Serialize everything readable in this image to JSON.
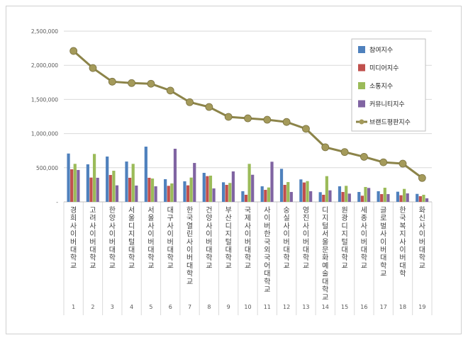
{
  "chart_data": {
    "type": "bar+line",
    "categories": [
      "경희사이버대학교",
      "고려사이버대학교",
      "한양사이버대학교",
      "서울디지털대학교",
      "서울사이버대학교",
      "대구사이버대학교",
      "한국열린사이버대학교",
      "건양사이버대학교",
      "부산디지털대학교",
      "국제사이버대학교",
      "사이버한국외국어대학교",
      "숭실사이버대학교",
      "영진사이버대학교",
      "디지털서울문화예술대학교",
      "원광디지털대학교",
      "세종사이버대학교",
      "글로벌사이버대학교",
      "한국복지사이버대학",
      "화신사이버대학교"
    ],
    "index_labels": [
      "1",
      "2",
      "3",
      "4",
      "5",
      "6",
      "7",
      "8",
      "9",
      "10",
      "11",
      "12",
      "13",
      "14",
      "15",
      "16",
      "17",
      "18",
      "19"
    ],
    "series": [
      {
        "name": "참여지수",
        "type": "bar",
        "color": "#4f81bd",
        "values": [
          708000,
          550000,
          664000,
          591000,
          809000,
          332000,
          301000,
          425000,
          287000,
          156000,
          228000,
          484000,
          329000,
          142000,
          228000,
          145000,
          156000,
          149000,
          117000
        ]
      },
      {
        "name": "미디어지수",
        "type": "bar",
        "color": "#c0504d",
        "values": [
          477000,
          356000,
          394000,
          353000,
          353000,
          235000,
          242000,
          377000,
          249000,
          104000,
          176000,
          249000,
          284000,
          104000,
          145000,
          90000,
          114000,
          97000,
          83000
        ]
      },
      {
        "name": "소통지수",
        "type": "bar",
        "color": "#9bbb59",
        "values": [
          557000,
          702000,
          456000,
          557000,
          342000,
          270000,
          356000,
          384000,
          277000,
          557000,
          211000,
          290000,
          304000,
          377000,
          235000,
          218000,
          207000,
          190000,
          104000
        ]
      },
      {
        "name": "커뮤니티지수",
        "type": "bar",
        "color": "#8064a2",
        "values": [
          467000,
          353000,
          242000,
          239000,
          228000,
          778000,
          570000,
          197000,
          446000,
          397000,
          588000,
          145000,
          156000,
          169000,
          121000,
          204000,
          114000,
          124000,
          52000
        ]
      },
      {
        "name": "브랜드평판지수",
        "type": "line",
        "color": "#8c8449",
        "values": [
          2210000,
          1960000,
          1760000,
          1740000,
          1730000,
          1630000,
          1460000,
          1390000,
          1245000,
          1224000,
          1203000,
          1170000,
          1070000,
          800000,
          730000,
          660000,
          580000,
          560000,
          350000
        ]
      }
    ],
    "y_ticks": [
      "-",
      "500,000",
      "1,000,000",
      "1,500,000",
      "2,000,000",
      "2,500,000"
    ],
    "ylim": [
      0,
      2500000
    ],
    "grid": true,
    "legend": "top-right"
  }
}
